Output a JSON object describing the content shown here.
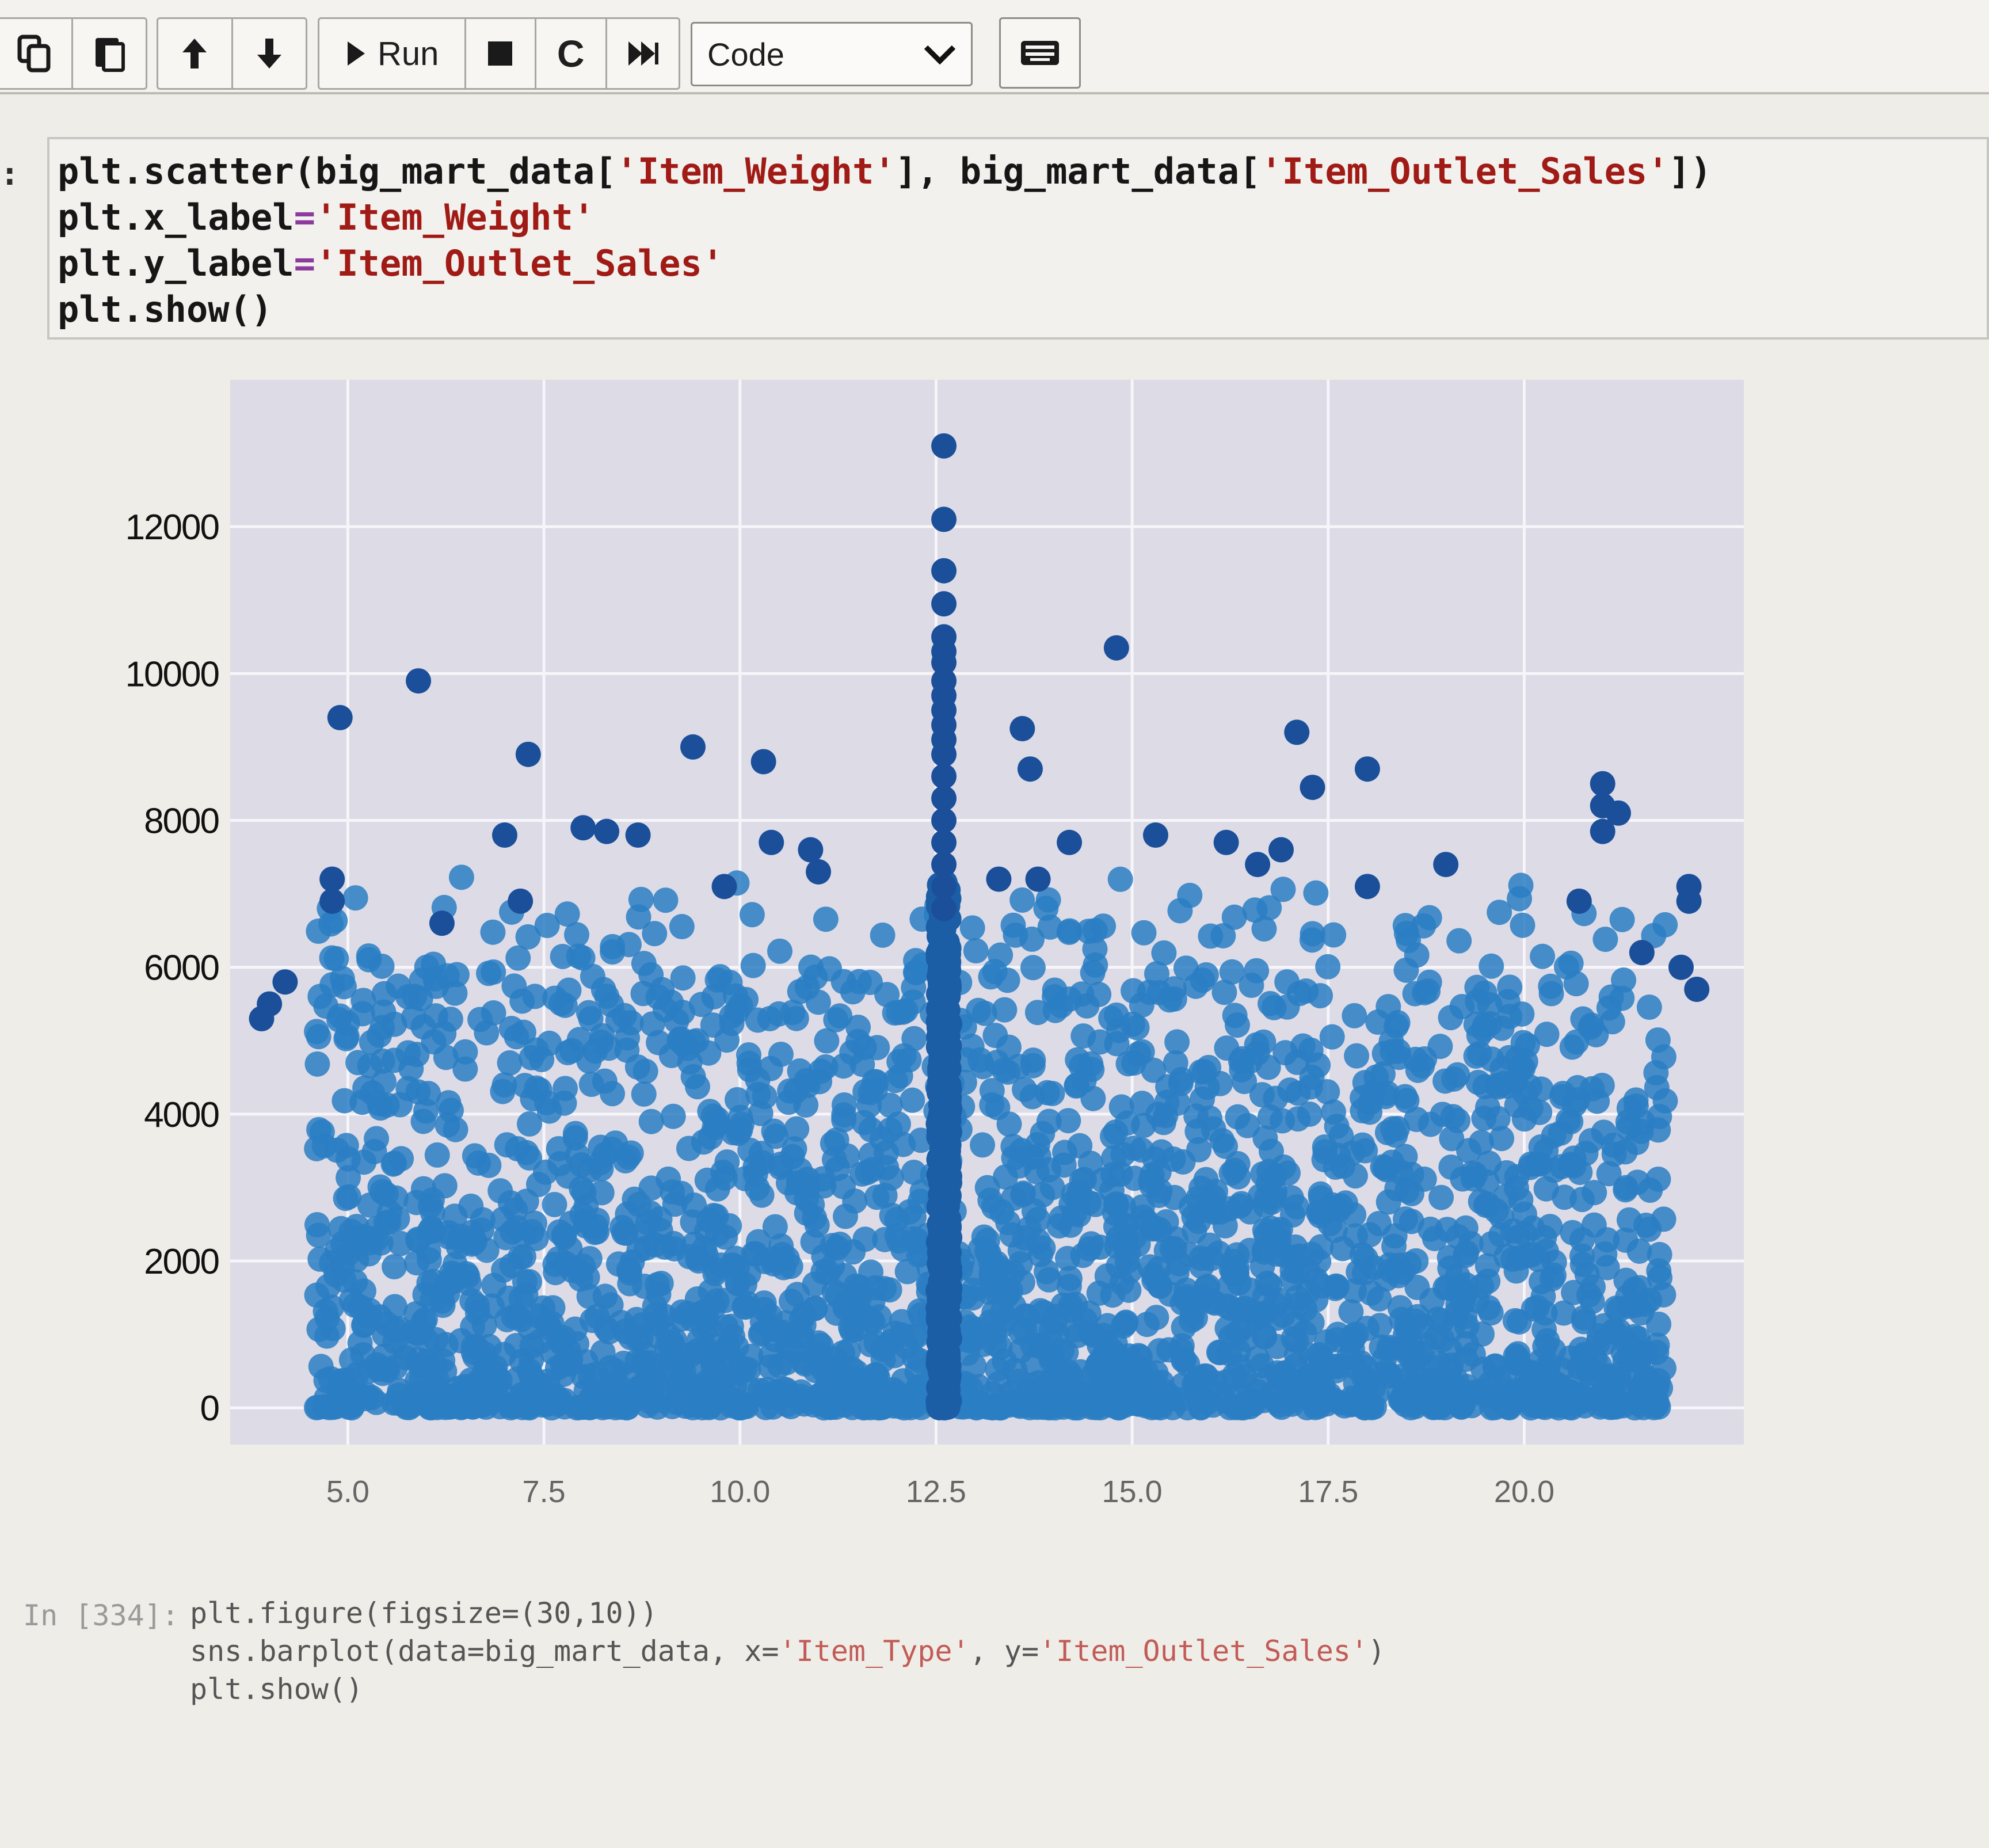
{
  "toolbar": {
    "copy_icon": "copy-icon",
    "paste_icon": "paste-icon",
    "up_icon": "arrow-up-icon",
    "down_icon": "arrow-down-icon",
    "run_label": "Run",
    "interrupt_icon": "stop-icon",
    "restart_label": "C",
    "restart_run_all_icon": "fast-forward-icon",
    "cell_type": "Code",
    "keyboard_icon": "keyboard-icon"
  },
  "cell": {
    "prompt": ":",
    "code": [
      {
        "pre": "plt.scatter(big_mart_data[",
        "s1": "'Item_Weight'",
        "mid": "], big_mart_data[",
        "s2": "'Item_Outlet_Sales'",
        "post": "])"
      },
      {
        "pre": "plt.x_label",
        "eq": "=",
        "s1": "'Item_Weight'"
      },
      {
        "pre": "plt.y_label",
        "eq": "=",
        "s1": "'Item_Outlet_Sales'"
      },
      {
        "pre": "plt.show()"
      }
    ]
  },
  "chart_data": {
    "type": "scatter",
    "title": "",
    "xlabel": "",
    "ylabel": "",
    "xlim": [
      3.5,
      22.8
    ],
    "ylim": [
      -500,
      14000
    ],
    "x_ticks": [
      "5.0",
      "7.5",
      "10.0",
      "12.5",
      "15.0",
      "17.5",
      "20.0"
    ],
    "y_ticks": [
      "0",
      "2000",
      "4000",
      "6000",
      "8000",
      "10000",
      "12000"
    ],
    "grid": true,
    "marker_color": "#2a7ec3",
    "background": "#dcdbe6",
    "points": [
      [
        12.6,
        13100
      ],
      [
        12.6,
        12100
      ],
      [
        12.6,
        11400
      ],
      [
        12.6,
        10950
      ],
      [
        12.6,
        10500
      ],
      [
        12.6,
        10300
      ],
      [
        12.6,
        10150
      ],
      [
        12.6,
        9900
      ],
      [
        12.6,
        9700
      ],
      [
        12.6,
        9500
      ],
      [
        12.6,
        9300
      ],
      [
        12.6,
        9100
      ],
      [
        12.6,
        8900
      ],
      [
        12.6,
        8600
      ],
      [
        12.6,
        8300
      ],
      [
        12.6,
        8000
      ],
      [
        12.6,
        7700
      ],
      [
        12.6,
        7400
      ],
      [
        12.6,
        7100
      ],
      [
        12.6,
        6800
      ],
      [
        14.8,
        10350
      ],
      [
        5.9,
        9900
      ],
      [
        4.9,
        9400
      ],
      [
        7.3,
        8900
      ],
      [
        9.4,
        9000
      ],
      [
        10.3,
        8800
      ],
      [
        13.6,
        9250
      ],
      [
        13.7,
        8700
      ],
      [
        17.1,
        9200
      ],
      [
        18.0,
        8700
      ],
      [
        17.3,
        8450
      ],
      [
        21.0,
        8500
      ],
      [
        21.0,
        8200
      ],
      [
        21.2,
        8100
      ],
      [
        21.0,
        7850
      ],
      [
        22.1,
        6900
      ],
      [
        22.1,
        7100
      ],
      [
        4.8,
        7200
      ],
      [
        4.8,
        6900
      ],
      [
        7.0,
        7800
      ],
      [
        8.0,
        7900
      ],
      [
        8.3,
        7850
      ],
      [
        8.7,
        7800
      ],
      [
        10.4,
        7700
      ],
      [
        10.9,
        7600
      ],
      [
        13.3,
        7200
      ],
      [
        13.8,
        7200
      ],
      [
        14.2,
        7700
      ],
      [
        15.3,
        7800
      ],
      [
        16.2,
        7700
      ],
      [
        16.6,
        7400
      ],
      [
        16.9,
        7600
      ],
      [
        18.0,
        7100
      ],
      [
        19.0,
        7400
      ],
      [
        20.7,
        6900
      ],
      [
        4.2,
        5800
      ],
      [
        4.0,
        5500
      ],
      [
        3.9,
        5300
      ],
      [
        22.0,
        6000
      ],
      [
        22.2,
        5700
      ],
      [
        21.5,
        6200
      ],
      [
        9.8,
        7100
      ],
      [
        11.0,
        7300
      ],
      [
        7.2,
        6900
      ],
      [
        6.2,
        6600
      ]
    ]
  },
  "next_cell": {
    "prompt": "In [334]:",
    "lines": [
      {
        "pre": "plt.figure(figsize=(30,10))"
      },
      {
        "pre": "sns.barplot(data=big_mart_data, x=",
        "s1": "'Item_Type'",
        "mid": ", y=",
        "s2": "'Item_Outlet_Sales'",
        "post": ")"
      },
      {
        "pre": "plt.show()"
      }
    ]
  }
}
